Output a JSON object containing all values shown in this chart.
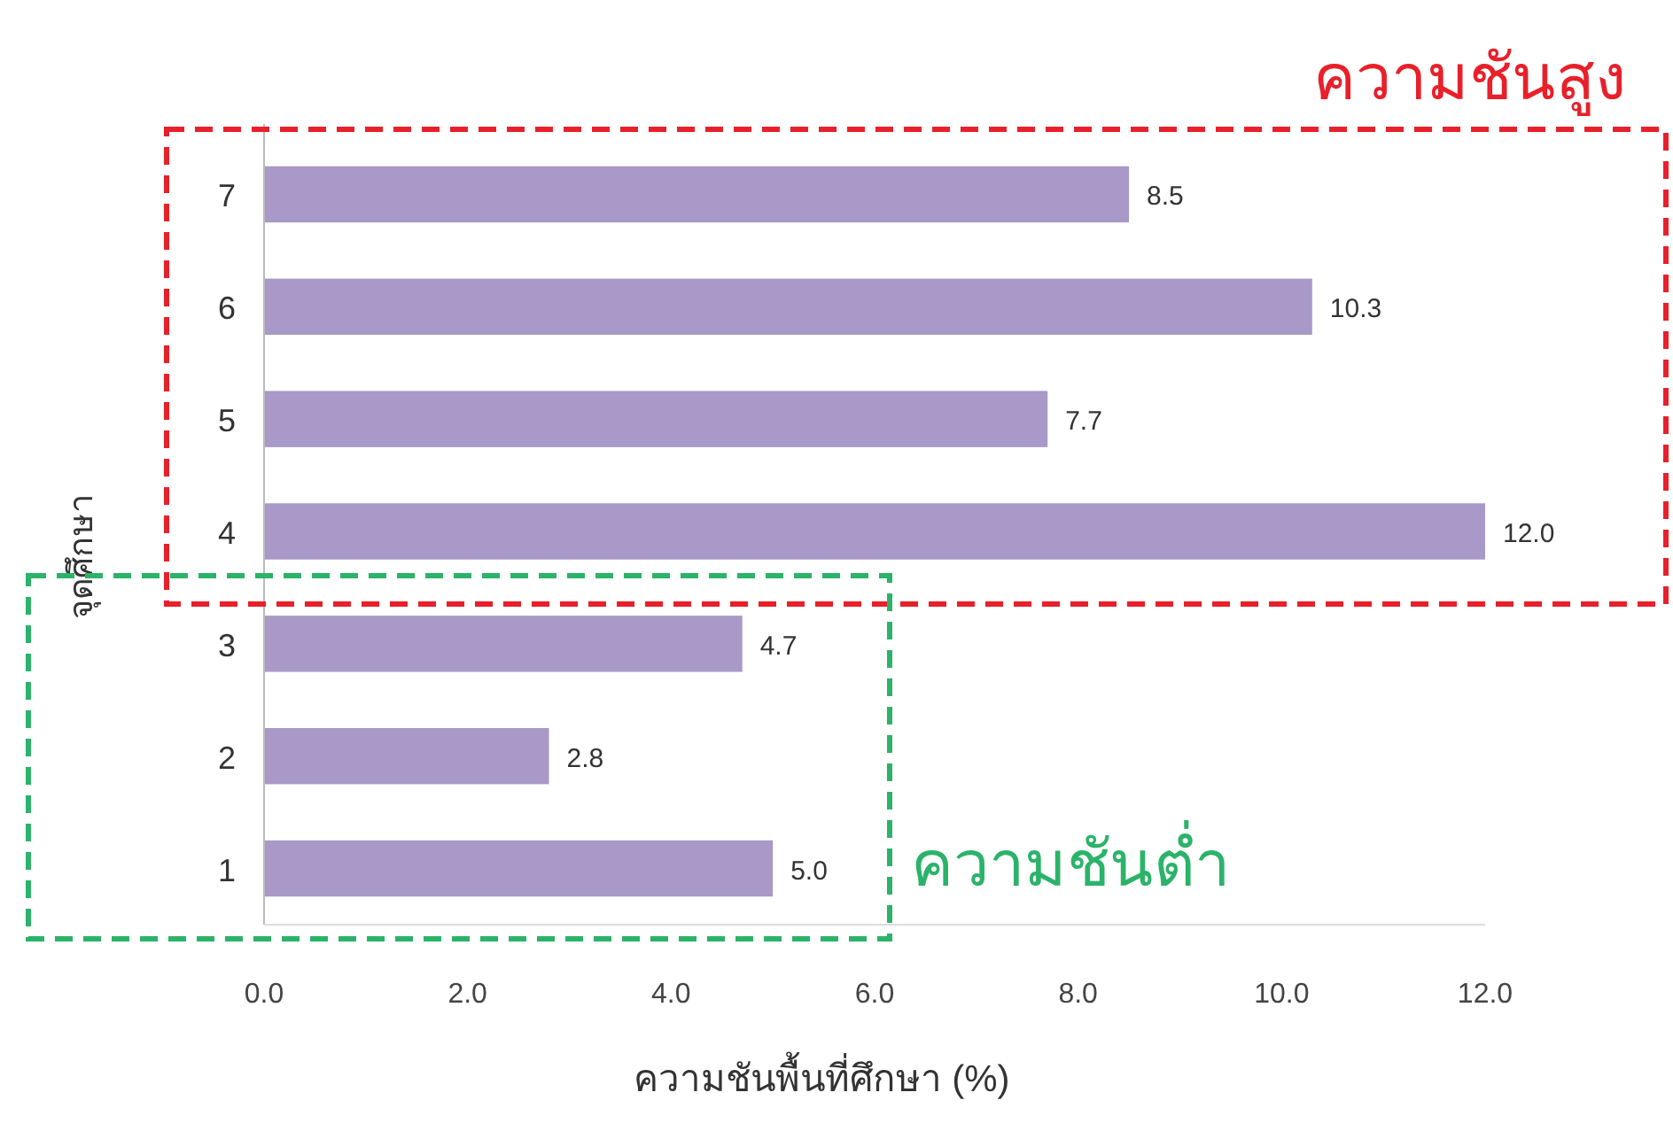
{
  "chart_data": {
    "type": "bar",
    "orientation": "horizontal",
    "xlabel": "ความชันพื้นที่ศึกษา (%)",
    "ylabel": "จุดศึกษา",
    "categories": [
      "7",
      "6",
      "5",
      "4",
      "3",
      "2",
      "1"
    ],
    "values": [
      8.5,
      10.3,
      7.7,
      12.0,
      4.7,
      2.8,
      5.0
    ],
    "value_labels": [
      "8.5",
      "10.3",
      "7.7",
      "12.0",
      "4.7",
      "2.8",
      "5.0"
    ],
    "color": "#a899c8",
    "xlim": [
      0,
      12
    ],
    "xticks": [
      {
        "value": 0,
        "label": "0.0"
      },
      {
        "value": 2,
        "label": "2.0"
      },
      {
        "value": 4,
        "label": "4.0"
      },
      {
        "value": 6,
        "label": "6.0"
      },
      {
        "value": 8,
        "label": "8.0"
      },
      {
        "value": 10,
        "label": "10.0"
      },
      {
        "value": 12,
        "label": "12.0"
      }
    ],
    "annotations": [
      "ความชันสูง",
      "ความชันต่ำ"
    ],
    "grid": false
  }
}
